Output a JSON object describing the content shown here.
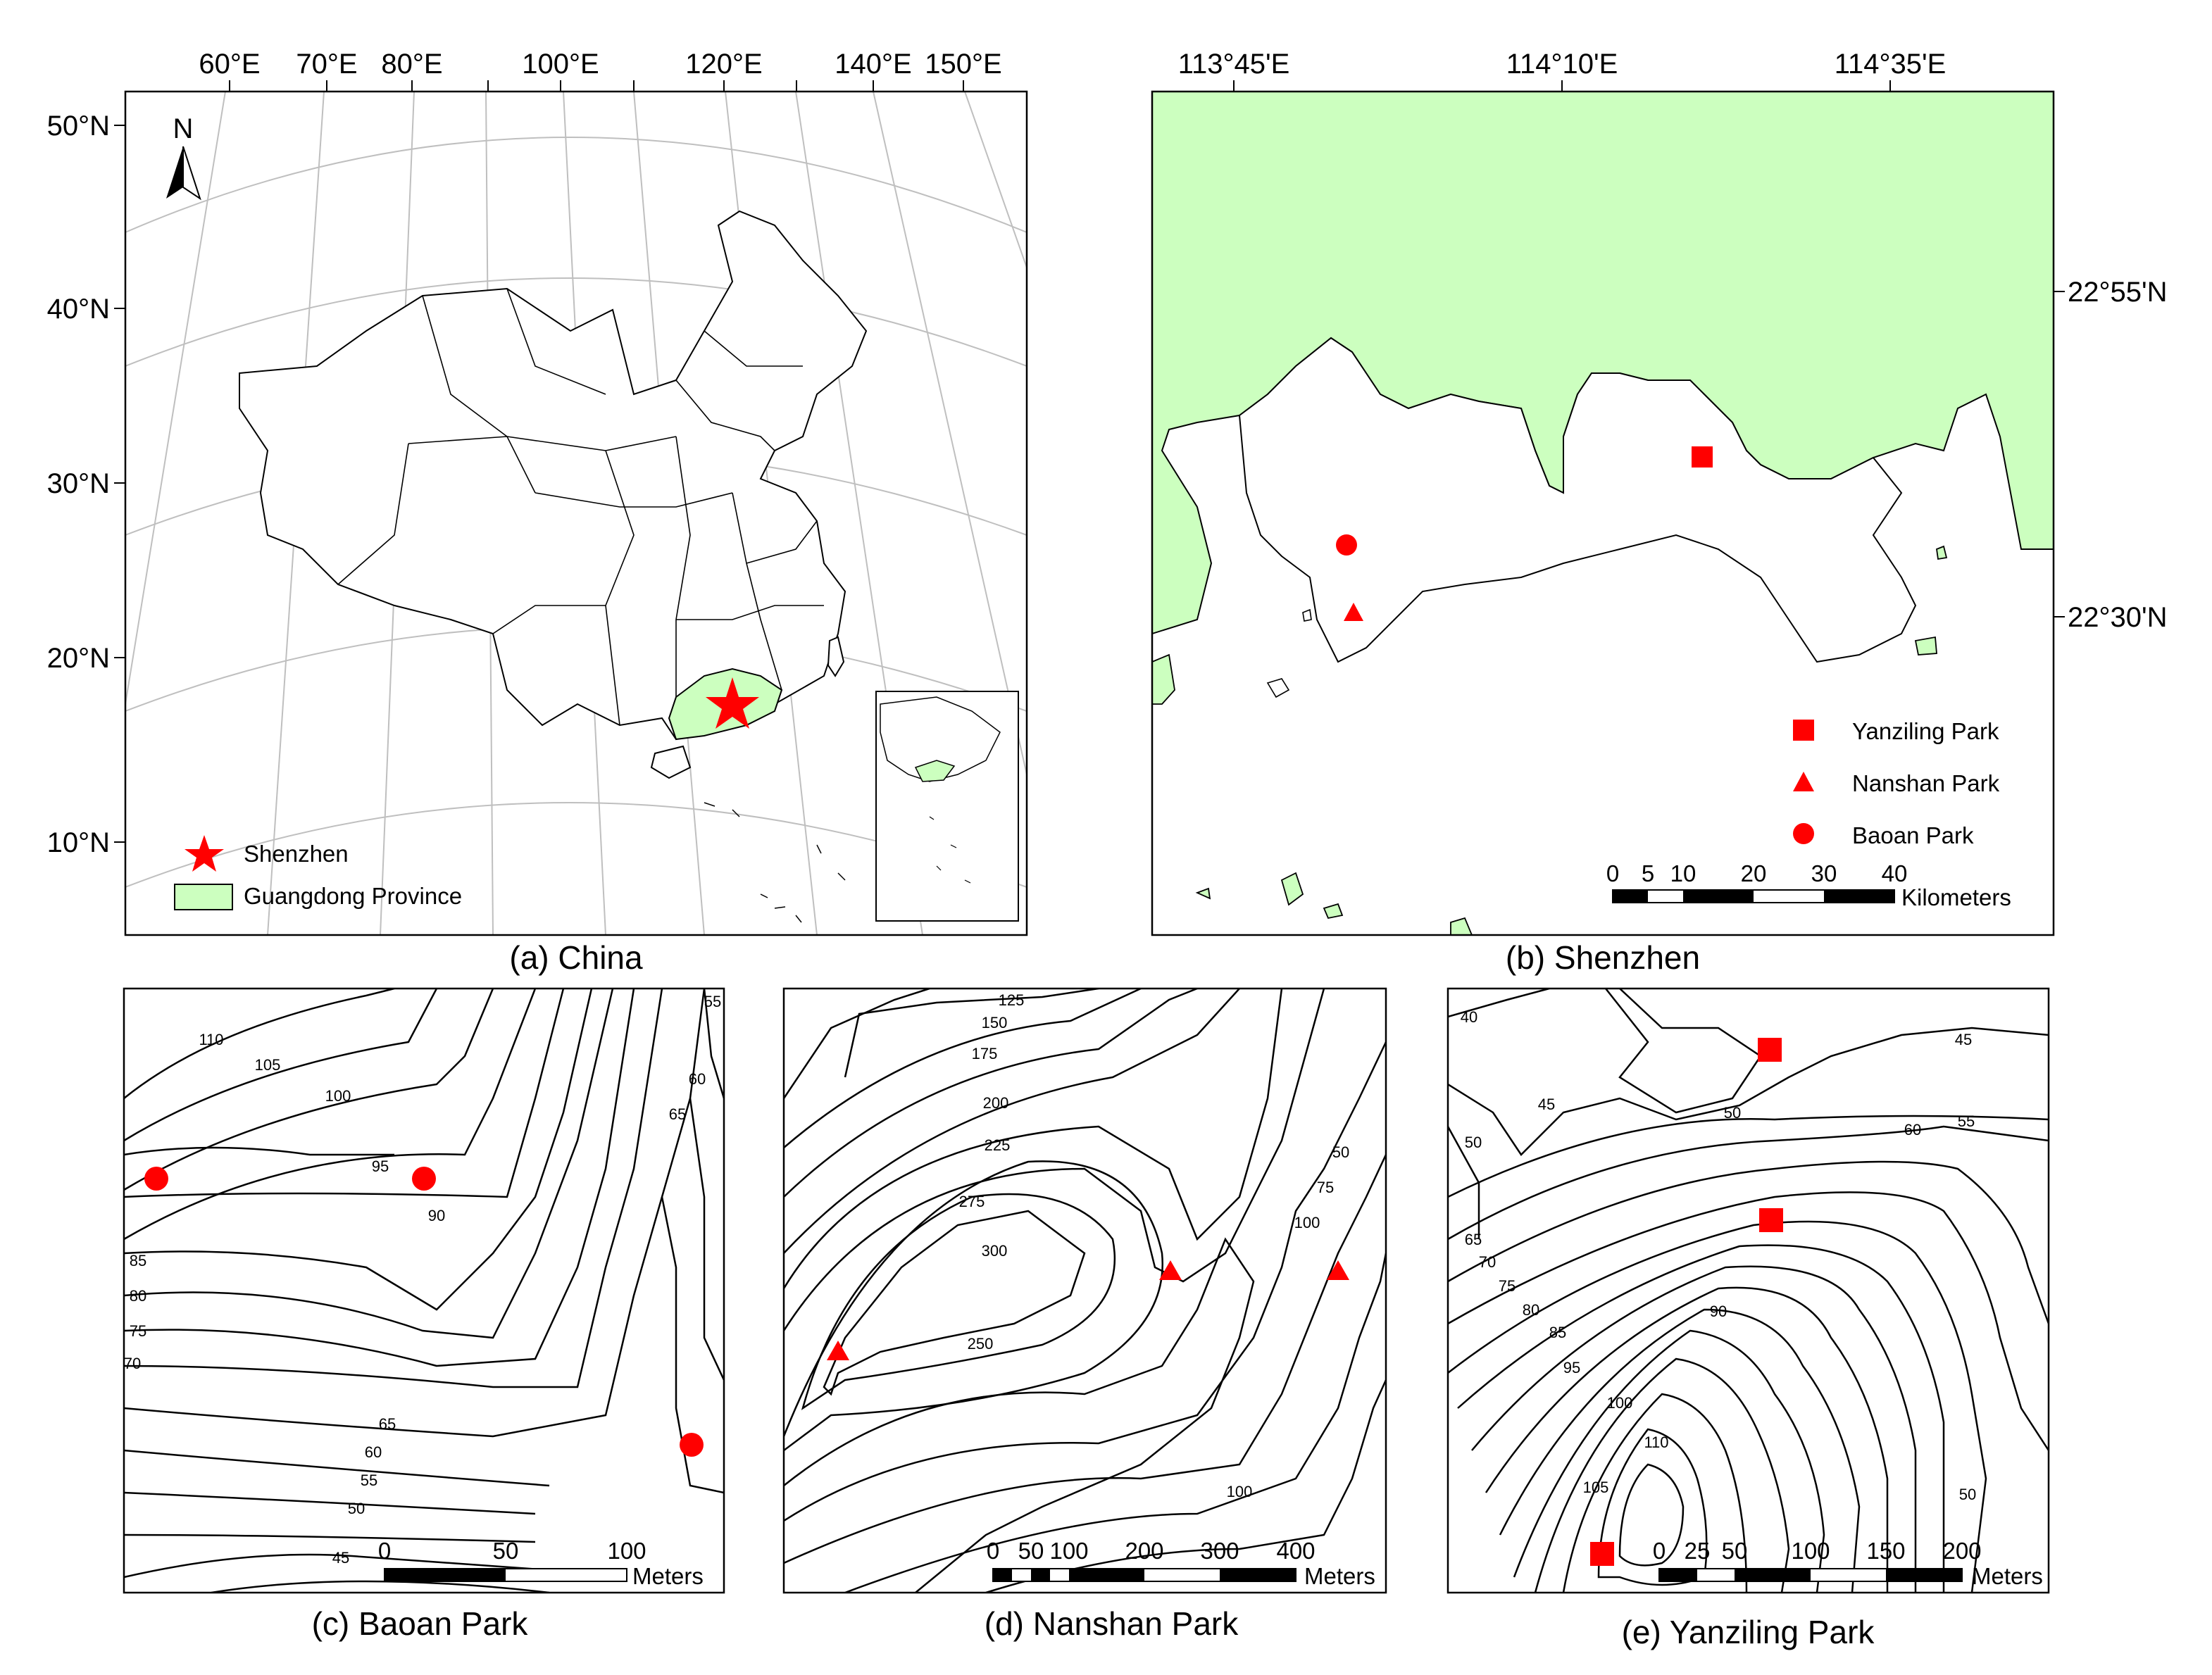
{
  "panels": {
    "china": {
      "caption": "(a) China",
      "lon_labels": [
        "60°E",
        "70°E",
        "80°E",
        "100°E",
        "120°E",
        "140°E",
        "150°E"
      ],
      "lat_labels": [
        "50°N",
        "40°N",
        "30°N",
        "20°N",
        "10°N"
      ],
      "north_label": "N",
      "legend": {
        "star_label": "Shenzhen",
        "province_label": "Guangdong Province"
      }
    },
    "shenzhen": {
      "caption": "(b) Shenzhen",
      "lon_labels": [
        "113°45'E",
        "114°10'E",
        "114°35'E"
      ],
      "lat_labels": [
        "22°55'N",
        "22°30'N"
      ],
      "legend": {
        "square_label": "Yanziling Park",
        "triangle_label": "Nanshan Park",
        "circle_label": "Baoan Park"
      },
      "scale": {
        "ticks": [
          "0",
          "5",
          "10",
          "20",
          "30",
          "40"
        ],
        "unit": "Kilometers"
      }
    },
    "baoan": {
      "caption": "(c) Baoan Park",
      "contours": [
        "110",
        "105",
        "100",
        "95",
        "90",
        "85",
        "80",
        "75",
        "70",
        "65",
        "60",
        "55",
        "50",
        "45",
        "55",
        "60",
        "65"
      ],
      "scale": {
        "ticks": [
          "0",
          "50",
          "100"
        ],
        "unit": "Meters"
      }
    },
    "nanshan": {
      "caption": "(d) Nanshan Park",
      "contours": [
        "125",
        "150",
        "175",
        "200",
        "225",
        "275",
        "300",
        "250",
        "100",
        "50",
        "75",
        "100"
      ],
      "scale": {
        "ticks": [
          "0",
          "50",
          "100",
          "200",
          "300",
          "400"
        ],
        "unit": "Meters"
      }
    },
    "yanziling": {
      "caption": "(e) Yanziling Park",
      "contours": [
        "40",
        "45",
        "45",
        "50",
        "55",
        "50",
        "60",
        "65",
        "70",
        "75",
        "80",
        "85",
        "90",
        "95",
        "100",
        "105",
        "110",
        "50"
      ],
      "scale": {
        "ticks": [
          "0",
          "25",
          "50",
          "100",
          "150",
          "200"
        ],
        "unit": "Meters"
      }
    }
  },
  "colors": {
    "marker": "#ff0000",
    "land_fill": "#ccffbf",
    "line": "#000000",
    "graticule": "#bfbfbf"
  }
}
